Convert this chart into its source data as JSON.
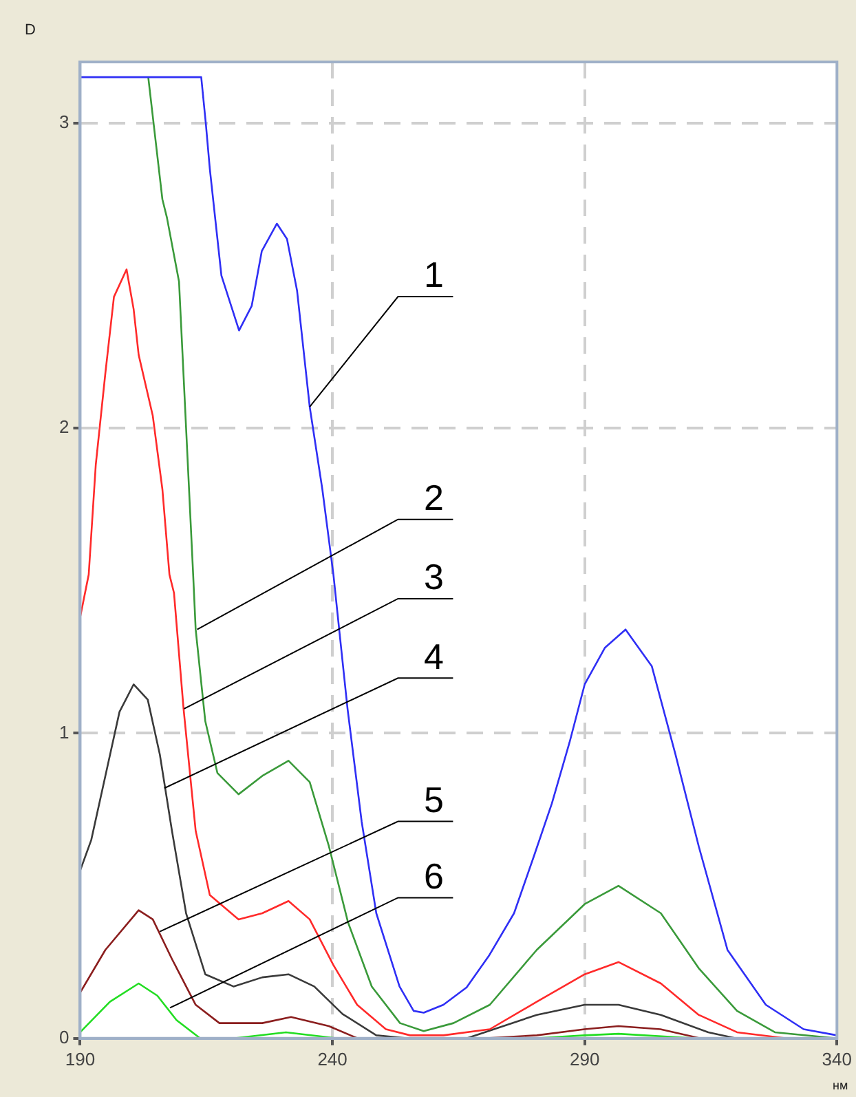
{
  "chart_data": {
    "type": "line",
    "xlabel": "нм",
    "ylabel": "D",
    "xlim": [
      190,
      340
    ],
    "ylim": [
      0,
      3.2
    ],
    "xticks": [
      190,
      240,
      290,
      340
    ],
    "yticks": [
      0,
      1,
      2,
      3
    ],
    "grid": true,
    "legend": false,
    "marker": "none",
    "line_style": "solid",
    "series": [
      {
        "color": "#2f2ff5",
        "x": [
          190,
          214,
          214.9,
          215.7,
          218,
          221.5,
          224,
          226,
          229,
          231,
          233,
          235.5,
          238,
          240.2,
          243,
          245.8,
          248.7,
          253.3,
          256.1,
          258.1,
          262,
          266.6,
          271,
          276,
          280,
          283.5,
          287,
          290,
          294,
          298.1,
          303.3,
          308,
          312.6,
          318.3,
          325.9,
          333.4,
          340
        ],
        "values": [
          3.15,
          3.15,
          3.0,
          2.85,
          2.5,
          2.32,
          2.4,
          2.58,
          2.67,
          2.62,
          2.45,
          2.07,
          1.8,
          1.52,
          1.08,
          0.71,
          0.41,
          0.17,
          0.09,
          0.084,
          0.11,
          0.167,
          0.27,
          0.41,
          0.6,
          0.77,
          0.97,
          1.16,
          1.28,
          1.34,
          1.22,
          0.93,
          0.63,
          0.29,
          0.11,
          0.03,
          0.01
        ]
      },
      {
        "color": "#3a9a3a",
        "x": [
          203.5,
          206.3,
          207.2,
          209.6,
          211,
          212.4,
          212.9,
          214.8,
          217.2,
          221.4,
          226.1,
          231.3,
          235.5,
          239.3,
          243.1,
          247.8,
          253.4,
          258.1,
          264,
          271.2,
          280.5,
          290,
          296.7,
          305.1,
          312.6,
          320.2,
          327.7,
          340
        ],
        "values": [
          3.15,
          2.75,
          2.69,
          2.48,
          2.0,
          1.52,
          1.34,
          1.04,
          0.87,
          0.8,
          0.86,
          0.91,
          0.84,
          0.63,
          0.38,
          0.17,
          0.05,
          0.024,
          0.05,
          0.11,
          0.29,
          0.44,
          0.5,
          0.41,
          0.23,
          0.09,
          0.02,
          0
        ]
      },
      {
        "color": "#ff2a2a",
        "x": [
          190,
          191.7,
          193.1,
          195,
          196.7,
          199.2,
          200.6,
          201.6,
          204.4,
          206.3,
          207.7,
          208.6,
          210.5,
          212.9,
          215.7,
          221.4,
          226.1,
          231.3,
          235.5,
          240.2,
          244.9,
          250.6,
          255.4,
          262,
          271.2,
          280.5,
          290,
          296.7,
          305.1,
          312.6,
          320.2,
          330,
          340
        ],
        "values": [
          1.38,
          1.52,
          1.88,
          2.18,
          2.43,
          2.52,
          2.39,
          2.24,
          2.04,
          1.8,
          1.52,
          1.46,
          1.08,
          0.68,
          0.47,
          0.39,
          0.41,
          0.45,
          0.39,
          0.24,
          0.11,
          0.03,
          0.01,
          0.01,
          0.03,
          0.12,
          0.21,
          0.25,
          0.18,
          0.077,
          0.02,
          0,
          0
        ]
      },
      {
        "color": "#3a3a3a",
        "x": [
          190,
          192.2,
          195,
          197.8,
          200.6,
          203.4,
          205.8,
          208.2,
          211,
          214.8,
          220.4,
          226.1,
          231.3,
          236.4,
          242,
          248.7,
          255,
          266.6,
          280.5,
          290,
          296.7,
          305.1,
          314.5,
          320,
          340
        ],
        "values": [
          0.55,
          0.65,
          0.86,
          1.07,
          1.16,
          1.11,
          0.93,
          0.68,
          0.41,
          0.21,
          0.17,
          0.2,
          0.21,
          0.17,
          0.08,
          0.01,
          0,
          0,
          0.077,
          0.11,
          0.11,
          0.077,
          0.02,
          0,
          0
        ]
      },
      {
        "color": "#8b1e1e",
        "x": [
          190,
          195,
          201.6,
          204.4,
          208.2,
          212.9,
          217.6,
          226.1,
          231.8,
          239.3,
          245,
          270,
          280.5,
          290,
          296.7,
          305,
          313,
          340
        ],
        "values": [
          0.15,
          0.29,
          0.42,
          0.39,
          0.26,
          0.11,
          0.05,
          0.05,
          0.07,
          0.04,
          0,
          0,
          0.01,
          0.03,
          0.04,
          0.03,
          0,
          0
        ]
      },
      {
        "color": "#22dd22",
        "x": [
          190,
          195.9,
          201.6,
          205.3,
          209.1,
          213.8,
          220.4,
          230.8,
          241,
          280,
          290,
          296.7,
          312,
          340
        ],
        "values": [
          0.02,
          0.12,
          0.18,
          0.14,
          0.06,
          0,
          0,
          0.02,
          0,
          0,
          0.01,
          0.015,
          0,
          0
        ]
      }
    ],
    "annotations": [
      {
        "text": "1",
        "x": 235.5,
        "y": 2.07
      },
      {
        "text": "2",
        "x": 213.2,
        "y": 1.34
      },
      {
        "text": "3",
        "x": 210.6,
        "y": 1.08
      },
      {
        "text": "4",
        "x": 206.7,
        "y": 0.82
      },
      {
        "text": "5",
        "x": 205.8,
        "y": 0.35
      },
      {
        "text": "6",
        "x": 207.8,
        "y": 0.1
      }
    ]
  }
}
